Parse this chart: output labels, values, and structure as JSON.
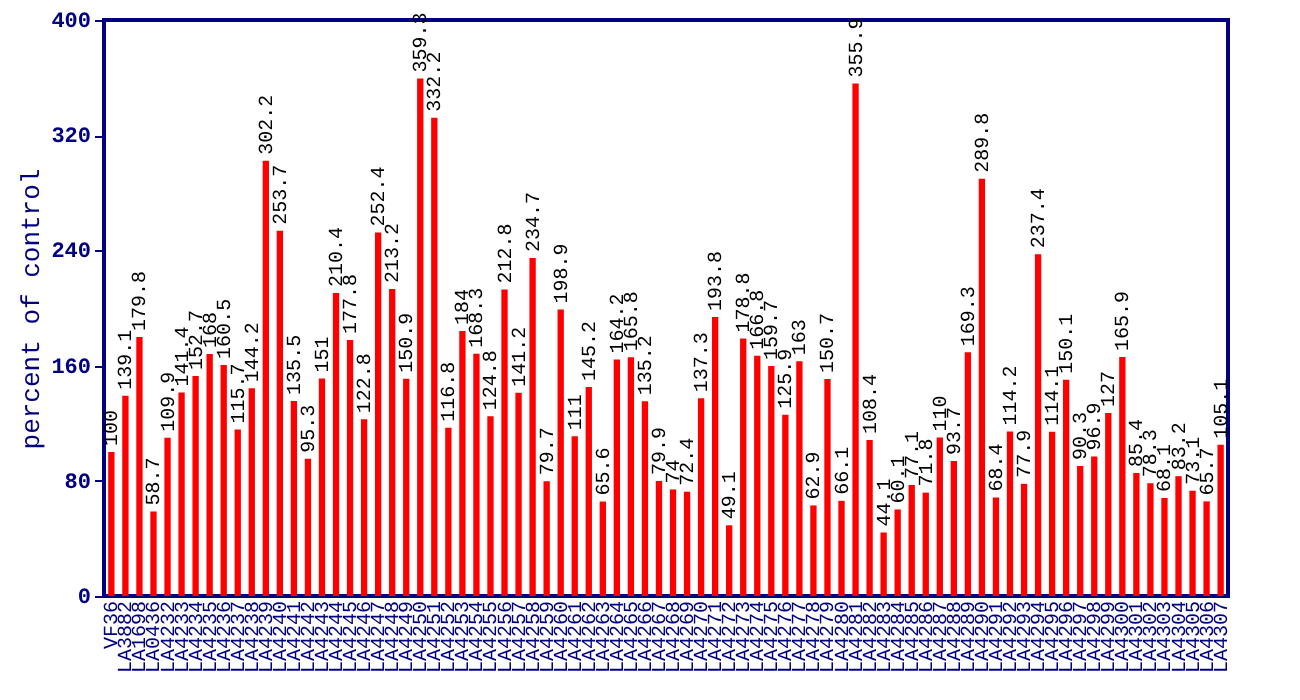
{
  "chart_data": {
    "type": "bar",
    "ylabel": "percent of control",
    "categories": [
      "VF36",
      "LA3882",
      "LA1698",
      "LA0436",
      "LA4232",
      "LA4233",
      "LA4234",
      "LA4235",
      "LA4236",
      "LA4237",
      "LA4238",
      "LA4239",
      "LA4240",
      "LA4241",
      "LA4242",
      "LA4243",
      "LA4244",
      "LA4245",
      "LA4246",
      "LA4247",
      "LA4248",
      "LA4249",
      "LA4250",
      "LA4251",
      "LA4252",
      "LA4253",
      "LA4254",
      "LA4255",
      "LA4256",
      "LA4257",
      "LA4258",
      "LA4259",
      "LA4260",
      "LA4261",
      "LA4262",
      "LA4263",
      "LA4264",
      "LA4265",
      "LA4266",
      "LA4267",
      "LA4268",
      "LA4269",
      "LA4270",
      "LA4271",
      "LA4272",
      "LA4273",
      "LA4274",
      "LA4275",
      "LA4276",
      "LA4277",
      "LA4278",
      "LA4279",
      "LA4280",
      "LA4281",
      "LA4282",
      "LA4283",
      "LA4284",
      "LA4285",
      "LA4286",
      "LA4287",
      "LA4288",
      "LA4289",
      "LA4290",
      "LA4291",
      "LA4292",
      "LA4293",
      "LA4294",
      "LA4295",
      "LA4296",
      "LA4297",
      "LA4298",
      "LA4299",
      "LA4300",
      "LA4301",
      "LA4302",
      "LA4303",
      "LA4304",
      "LA4305",
      "LA4306",
      "LA4307"
    ],
    "values": [
      100,
      139.1,
      179.8,
      58.7,
      109.9,
      141.4,
      152.7,
      168,
      160.5,
      115.7,
      144.2,
      302.2,
      253.7,
      135.5,
      95.3,
      151,
      210.4,
      177.8,
      122.8,
      252.4,
      213.2,
      150.9,
      359.3,
      332.2,
      116.8,
      184,
      168.3,
      124.8,
      212.8,
      141.2,
      234.7,
      79.7,
      198.9,
      111,
      145.2,
      65.6,
      164.2,
      165.8,
      135.2,
      79.9,
      74,
      72.4,
      137.3,
      193.8,
      49.1,
      178.8,
      166.8,
      159.7,
      125.9,
      163,
      62.9,
      150.7,
      66.1,
      355.9,
      108.4,
      44.1,
      60.1,
      77.1,
      71.8,
      110,
      93.7,
      169.3,
      289.8,
      68.4,
      114.2,
      77.9,
      237.4,
      114.1,
      150.1,
      90.3,
      96.9,
      127,
      165.9,
      85.4,
      78.3,
      68.1,
      83.2,
      73.1,
      65.7,
      105.1
    ],
    "color": "#ff0000",
    "ylim": [
      0,
      400
    ],
    "yticks": [
      0,
      80,
      160,
      240,
      320,
      400
    ],
    "data_labels": true
  }
}
